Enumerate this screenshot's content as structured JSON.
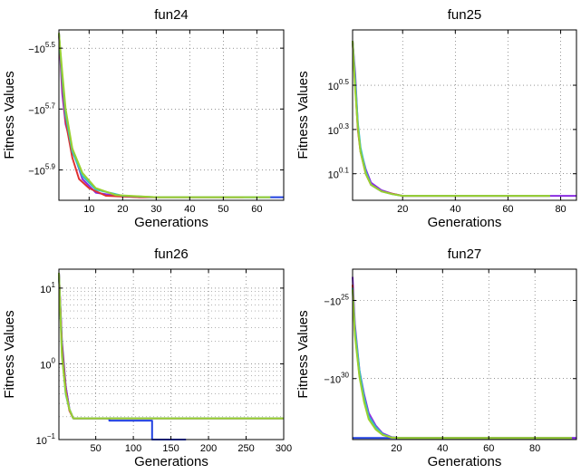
{
  "chart_data": [
    {
      "type": "line",
      "title": "fun24",
      "xlabel": "Generations",
      "ylabel": "Fitness Values",
      "x_ticks": [
        10,
        20,
        30,
        40,
        50,
        60
      ],
      "y_ticks": [
        {
          "base": "−10",
          "exp": "5.5"
        },
        {
          "base": "−10",
          "exp": "5.7"
        },
        {
          "base": "−10",
          "exp": "5.9"
        }
      ],
      "y_scale": "negative-log",
      "grid": true,
      "xlim": [
        1,
        68
      ],
      "series": [
        {
          "color": "#8a2be2",
          "x": [
            1,
            2,
            3,
            5,
            8,
            12,
            18,
            25,
            40,
            56
          ],
          "y": [
            5.45,
            5.65,
            5.75,
            5.83,
            5.93,
            5.975,
            5.985,
            5.99,
            5.99,
            5.99
          ]
        },
        {
          "color": "#e03030",
          "x": [
            1,
            2,
            3,
            5,
            7,
            10,
            15,
            25,
            40,
            56
          ],
          "y": [
            5.45,
            5.62,
            5.74,
            5.86,
            5.93,
            5.96,
            5.985,
            5.99,
            5.99,
            5.99
          ]
        },
        {
          "color": "#2040e0",
          "x": [
            56,
            68
          ],
          "y": [
            5.99,
            5.99
          ]
        },
        {
          "color": "#30c0c0",
          "x": [
            1,
            2,
            3,
            5,
            8,
            12,
            20,
            30,
            56,
            64
          ],
          "y": [
            5.45,
            5.6,
            5.72,
            5.84,
            5.92,
            5.965,
            5.985,
            5.99,
            5.99,
            5.99
          ]
        },
        {
          "color": "#9ad030",
          "x": [
            1,
            2,
            3,
            5,
            8,
            12,
            18,
            30,
            56,
            64
          ],
          "y": [
            5.45,
            5.58,
            5.7,
            5.83,
            5.91,
            5.96,
            5.983,
            5.99,
            5.99,
            5.99
          ]
        }
      ]
    },
    {
      "type": "line",
      "title": "fun25",
      "xlabel": "Generations",
      "ylabel": "Fitness Values",
      "x_ticks": [
        20,
        40,
        60,
        80
      ],
      "y_ticks": [
        {
          "base": "10",
          "exp": "0.5"
        },
        {
          "base": "10",
          "exp": "0.3"
        },
        {
          "base": "10",
          "exp": "0.1"
        }
      ],
      "y_scale": "log",
      "grid": true,
      "xlim": [
        1,
        86
      ],
      "series": [
        {
          "color": "#8a2be2",
          "x": [
            1,
            2,
            3,
            4,
            6,
            8,
            12,
            16,
            20,
            40,
            76,
            86
          ],
          "y": [
            0.7,
            0.55,
            0.32,
            0.21,
            0.12,
            0.06,
            0.025,
            0.01,
            0.0,
            0.0,
            0.0,
            0.0
          ]
        },
        {
          "color": "#e03030",
          "x": [
            1,
            2,
            3,
            4,
            6,
            8,
            12,
            16,
            20,
            40,
            76
          ],
          "y": [
            0.7,
            0.5,
            0.3,
            0.2,
            0.1,
            0.05,
            0.02,
            0.01,
            0.0,
            0.0,
            0.0
          ]
        },
        {
          "color": "#30c0c0",
          "x": [
            1,
            2,
            3,
            4,
            6,
            8,
            12,
            16,
            20,
            40,
            76
          ],
          "y": [
            0.7,
            0.52,
            0.33,
            0.22,
            0.11,
            0.05,
            0.02,
            0.008,
            0.0,
            0.0,
            0.0
          ]
        },
        {
          "color": "#9ad030",
          "x": [
            1,
            2,
            3,
            4,
            6,
            8,
            12,
            16,
            20,
            40,
            76
          ],
          "y": [
            0.7,
            0.48,
            0.31,
            0.2,
            0.1,
            0.05,
            0.02,
            0.008,
            0.0,
            0.0,
            0.0
          ]
        }
      ]
    },
    {
      "type": "line",
      "title": "fun26",
      "xlabel": "Generations",
      "ylabel": "Fitness Values",
      "x_ticks": [
        50,
        100,
        150,
        200,
        250,
        300
      ],
      "y_ticks": [
        {
          "base": "10",
          "exp": "1"
        },
        {
          "base": "10",
          "exp": "0"
        },
        {
          "base": "10",
          "exp": "−1"
        }
      ],
      "y_scale": "log",
      "grid": true,
      "xlim": [
        1,
        300
      ],
      "series": [
        {
          "color": "#2040e0",
          "x": [
            1,
            5,
            10,
            15,
            20,
            68,
            68,
            125,
            125,
            170
          ],
          "y": [
            1.2,
            0.3,
            -0.3,
            -0.6,
            -0.72,
            -0.72,
            -0.75,
            -0.75,
            -1.0,
            -1.0
          ]
        },
        {
          "color": "#8a2be2",
          "x": [
            1,
            5,
            10,
            15,
            20,
            300
          ],
          "y": [
            1.2,
            0.2,
            -0.3,
            -0.6,
            -0.72,
            -0.72
          ]
        },
        {
          "color": "#e03030",
          "x": [
            1,
            5,
            10,
            15,
            20,
            300
          ],
          "y": [
            1.2,
            0.25,
            -0.35,
            -0.62,
            -0.72,
            -0.72
          ]
        },
        {
          "color": "#30c0c0",
          "x": [
            1,
            5,
            10,
            15,
            20,
            300
          ],
          "y": [
            1.2,
            0.15,
            -0.4,
            -0.6,
            -0.72,
            -0.72
          ]
        },
        {
          "color": "#9ad030",
          "x": [
            1,
            5,
            10,
            15,
            20,
            300
          ],
          "y": [
            1.2,
            0.1,
            -0.38,
            -0.6,
            -0.72,
            -0.72
          ]
        }
      ]
    },
    {
      "type": "line",
      "title": "fun27",
      "xlabel": "Generations",
      "ylabel": "Fitness Values",
      "x_ticks": [
        20,
        40,
        60,
        80
      ],
      "y_ticks": [
        {
          "base": "−10",
          "exp": "25"
        },
        {
          "base": "−10",
          "exp": "30"
        }
      ],
      "y_scale": "negative-log",
      "grid": true,
      "xlim": [
        1,
        98
      ],
      "series": [
        {
          "color": "#2040e0",
          "x": [
            1,
            98
          ],
          "y": [
            33.8,
            33.8
          ]
        },
        {
          "color": "#8a2be2",
          "x": [
            1,
            2,
            4,
            6,
            8,
            11,
            14,
            18,
            22,
            40,
            98
          ],
          "y": [
            23.5,
            26.5,
            29.5,
            31.0,
            32.2,
            33.0,
            33.5,
            33.75,
            33.8,
            33.8,
            33.8
          ]
        },
        {
          "color": "#e03030",
          "x": [
            1,
            2,
            4,
            6,
            8,
            11,
            14,
            18,
            22,
            40,
            96
          ],
          "y": [
            24.0,
            27.0,
            29.8,
            31.3,
            32.5,
            33.2,
            33.6,
            33.78,
            33.8,
            33.8,
            33.8
          ]
        },
        {
          "color": "#30c0c0",
          "x": [
            1,
            2,
            4,
            6,
            8,
            11,
            14,
            18,
            22,
            40,
            96
          ],
          "y": [
            24.2,
            26.8,
            29.5,
            31.2,
            32.4,
            33.1,
            33.55,
            33.77,
            33.8,
            33.8,
            33.8
          ]
        },
        {
          "color": "#9ad030",
          "x": [
            1,
            2,
            4,
            6,
            8,
            11,
            14,
            18,
            22,
            40,
            96
          ],
          "y": [
            24.3,
            27.2,
            29.9,
            31.5,
            32.6,
            33.25,
            33.6,
            33.78,
            33.8,
            33.8,
            33.8
          ]
        }
      ]
    }
  ]
}
